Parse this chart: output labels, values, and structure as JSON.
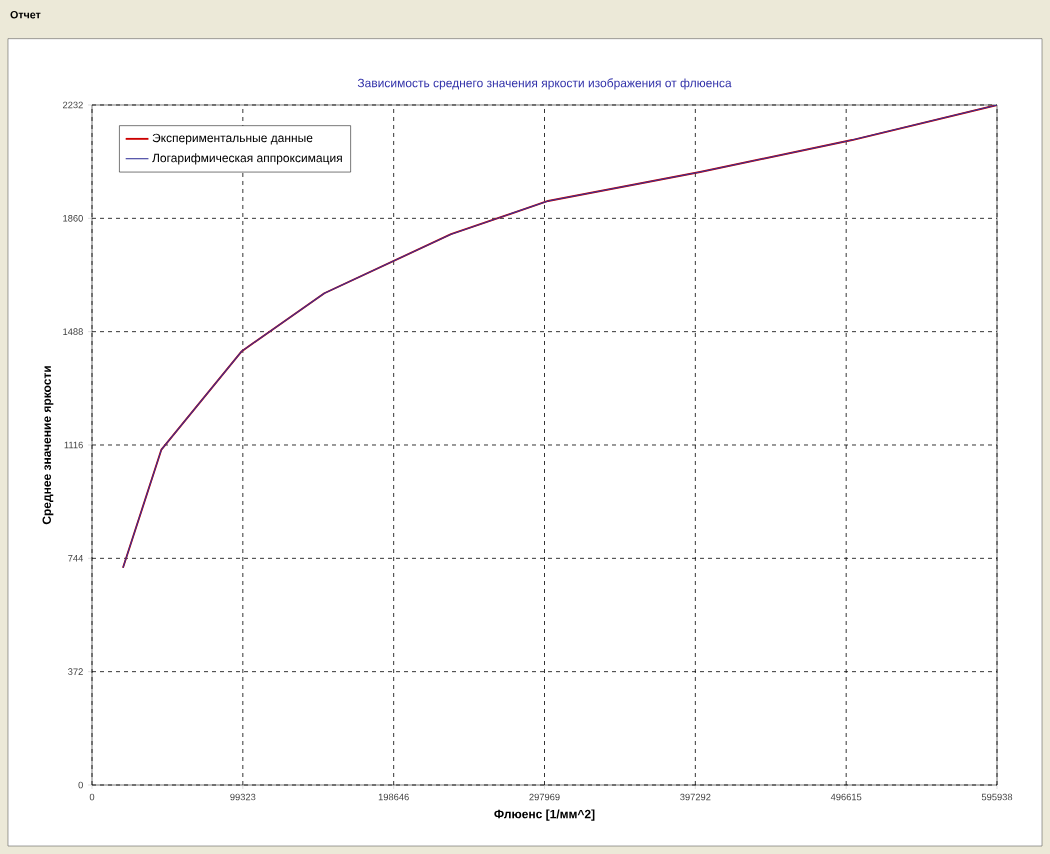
{
  "chart_data": {
    "type": "line",
    "title": "Зависимость среднего значения яркости изображения от флюенса",
    "xlabel": "Флюенс [1/мм^2]",
    "ylabel": "Среднее значение яркости",
    "annotations": [
      "Отчет"
    ],
    "xlim": [
      0,
      595938
    ],
    "ylim": [
      0,
      2232
    ],
    "xticks": [
      0,
      99323,
      198646,
      297969,
      397292,
      496615,
      595938
    ],
    "yticks": [
      0,
      372,
      744,
      1116,
      1488,
      1860,
      2232
    ],
    "grid": true,
    "legend": "top left",
    "x": [
      20400,
      45700,
      98650,
      153000,
      236400,
      300300,
      400400,
      500500,
      595938
    ],
    "series": [
      {
        "name": "Экспериментальные данные",
        "color": "#cc0000",
        "values": [
          713,
          1101,
          1424,
          1614,
          1808,
          1917,
          2012,
          2117,
          2232
        ]
      },
      {
        "name": "Логарифмическая аппроксимация",
        "color": "#333399",
        "values": [
          713,
          1101,
          1424,
          1614,
          1808,
          1917,
          2012,
          2117,
          2232
        ]
      }
    ]
  }
}
